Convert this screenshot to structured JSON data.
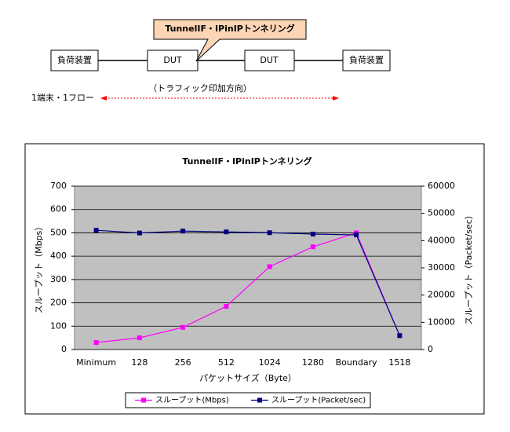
{
  "diagram": {
    "callout": "TunnelIF・IPinIPトンネリング",
    "nodes": [
      "負荷装置",
      "DUT",
      "DUT",
      "負荷装置"
    ],
    "direction_label": "（トラフィック印加方向）",
    "flow_label": "1端末・1フロー"
  },
  "chart_data": {
    "type": "line",
    "title": "TunnelIF・IPinIPトンネリング",
    "x_label": "パケットサイズ（Byte）",
    "y_label": "スループット（Mbps）",
    "y2_label": "スループット（Packet/sec）",
    "categories": [
      "Minimum",
      "128",
      "256",
      "512",
      "1024",
      "1280",
      "Boundary",
      "1518"
    ],
    "series": [
      {
        "name": "スループット(Mbps)",
        "color": "#ff00ff",
        "values": [
          30,
          50,
          95,
          185,
          355,
          440,
          500,
          60
        ]
      },
      {
        "name": "スループット(Packet/sec)",
        "color": "#000080",
        "axis": "y2",
        "values": [
          43800,
          42800,
          43500,
          43200,
          42900,
          42400,
          42100,
          5100
        ]
      }
    ],
    "ylim": [
      0,
      700
    ],
    "yticks": [
      0,
      100,
      200,
      300,
      400,
      500,
      600,
      700
    ],
    "y2lim": [
      0,
      60000
    ],
    "y2ticks": [
      0,
      10000,
      20000,
      30000,
      40000,
      50000,
      60000
    ],
    "grid": true,
    "legend": "bottom"
  }
}
